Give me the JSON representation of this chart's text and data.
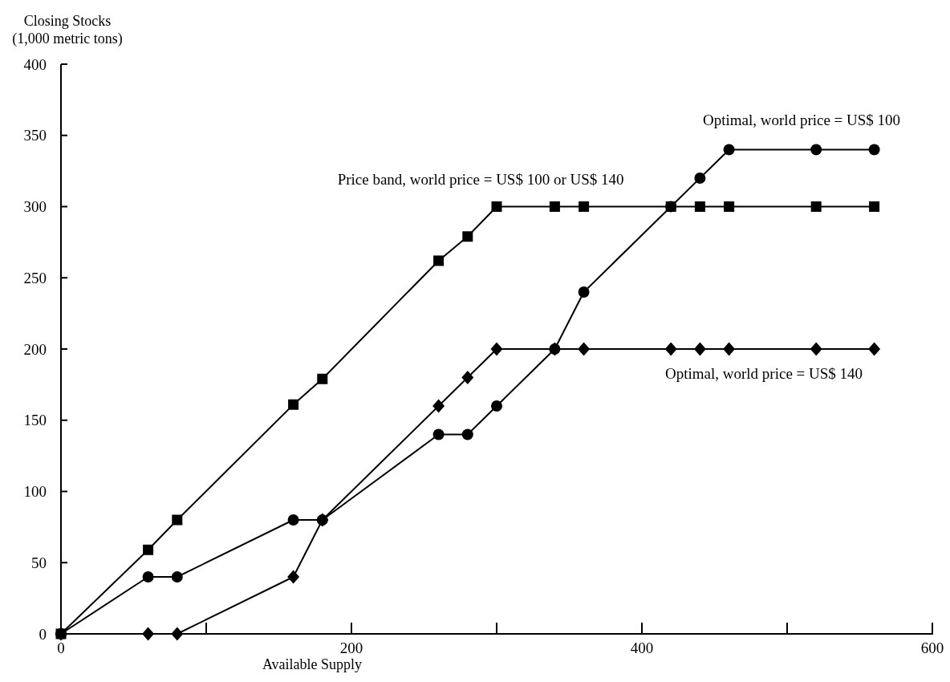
{
  "chart_data": {
    "type": "line",
    "xlabel": "Available Supply",
    "ylabel": "Closing Stocks\n(1,000 metric tons)",
    "xlim": [
      0,
      600
    ],
    "ylim": [
      0,
      400
    ],
    "xticks": [
      0,
      {
        "value": 100,
        "label": null
      },
      200,
      {
        "value": 300,
        "label": null
      },
      400,
      {
        "value": 500,
        "label": null
      },
      600
    ],
    "yticks": [
      0,
      50,
      100,
      150,
      200,
      250,
      300,
      350,
      400
    ],
    "grid": false,
    "line_style": "solid",
    "series": [
      {
        "color": "#000000",
        "marker": "square",
        "x": [
          0,
          60,
          80,
          160,
          180,
          260,
          280,
          300,
          340,
          360,
          420,
          440,
          460,
          520,
          560
        ],
        "values": [
          0,
          59,
          80,
          161,
          179,
          262,
          279,
          300,
          300,
          300,
          300,
          300,
          300,
          300,
          300
        ]
      },
      {
        "color": "#000000",
        "marker": "circle",
        "x": [
          0,
          60,
          80,
          160,
          180,
          260,
          280,
          300,
          340,
          360,
          420,
          440,
          460,
          520,
          560
        ],
        "values": [
          0,
          40,
          40,
          80,
          80,
          140,
          140,
          160,
          200,
          240,
          300,
          320,
          340,
          340,
          340
        ]
      },
      {
        "color": "#000000",
        "marker": "diamond",
        "x": [
          0,
          60,
          80,
          160,
          180,
          260,
          280,
          300,
          340,
          360,
          420,
          440,
          460,
          520,
          560
        ],
        "values": [
          0,
          0,
          0,
          40,
          80,
          160,
          180,
          200,
          200,
          200,
          200,
          200,
          200,
          200,
          200
        ]
      }
    ],
    "annotations": [
      "Optimal, world price = US$ 100",
      "Price band, world price = US$ 100 or US$ 140",
      "Optimal, world price = US$ 140"
    ]
  }
}
